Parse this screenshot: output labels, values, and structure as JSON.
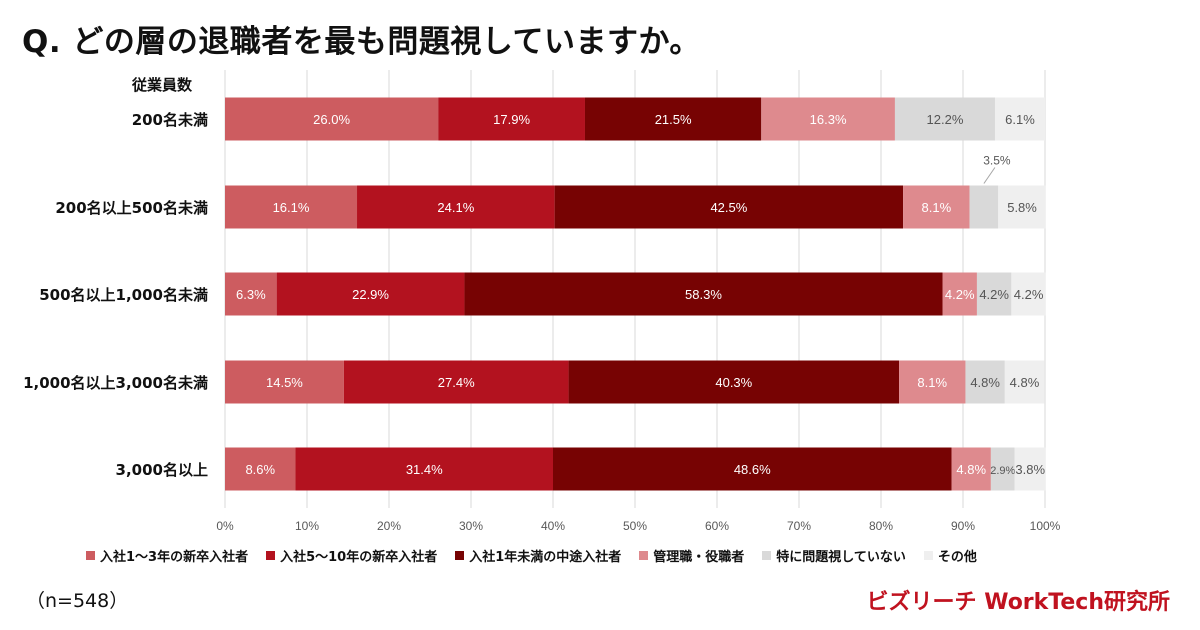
{
  "title": "Q.  どの層の退職者を最も問題視していますか。",
  "category_header": "従業員数",
  "sample_size": "（n=548）",
  "brand": "ビズリーチ WorkTech研究所",
  "chart_data": {
    "type": "bar",
    "orientation": "horizontal",
    "stacked": true,
    "percent": true,
    "categories": [
      "200名未満",
      "200名以上500名未満",
      "500名以上1,000名未満",
      "1,000名以上3,000名未満",
      "3,000名以上"
    ],
    "series": [
      {
        "name": "入社1〜3年の新卒入社者",
        "color": "#cd5c60",
        "values": [
          26.0,
          16.1,
          6.3,
          14.5,
          8.6
        ],
        "labels": [
          "26.0%",
          "16.1%",
          "6.3%",
          "14.5%",
          "8.6%"
        ]
      },
      {
        "name": "入社5〜10年の新卒入社者",
        "color": "#b3121f",
        "values": [
          17.9,
          24.1,
          22.9,
          27.4,
          31.4
        ],
        "labels": [
          "17.9%",
          "24.1%",
          "22.9%",
          "27.4%",
          "31.4%"
        ]
      },
      {
        "name": "入社1年未満の中途入社者",
        "color": "#770303",
        "values": [
          21.5,
          42.5,
          58.3,
          40.3,
          48.6
        ],
        "labels": [
          "21.5%",
          "42.5%",
          "58.3%",
          "40.3%",
          "48.6%"
        ]
      },
      {
        "name": "管理職・役職者",
        "color": "#de8a8e",
        "values": [
          16.3,
          8.1,
          4.2,
          8.1,
          4.8
        ],
        "labels": [
          "16.3%",
          "8.1%",
          "4.2%",
          "8.1%",
          "4.8%"
        ]
      },
      {
        "name": "特に問題視していない",
        "color": "#d9d9d9",
        "values": [
          12.2,
          3.5,
          4.2,
          4.8,
          2.9
        ],
        "labels": [
          "12.2%",
          "3.5%",
          "4.2%",
          "4.8%",
          "2.9%"
        ]
      },
      {
        "name": "その他",
        "color": "#efefef",
        "values": [
          6.1,
          5.8,
          4.2,
          4.8,
          3.8
        ],
        "labels": [
          "6.1%",
          "5.8%",
          "4.2%",
          "4.8%",
          "3.8%"
        ]
      }
    ],
    "x_ticks": [
      "0%",
      "10%",
      "20%",
      "30%",
      "40%",
      "50%",
      "60%",
      "70%",
      "80%",
      "90%",
      "100%"
    ],
    "xlim": [
      0,
      100
    ],
    "grid": true,
    "legend_position": "bottom"
  }
}
